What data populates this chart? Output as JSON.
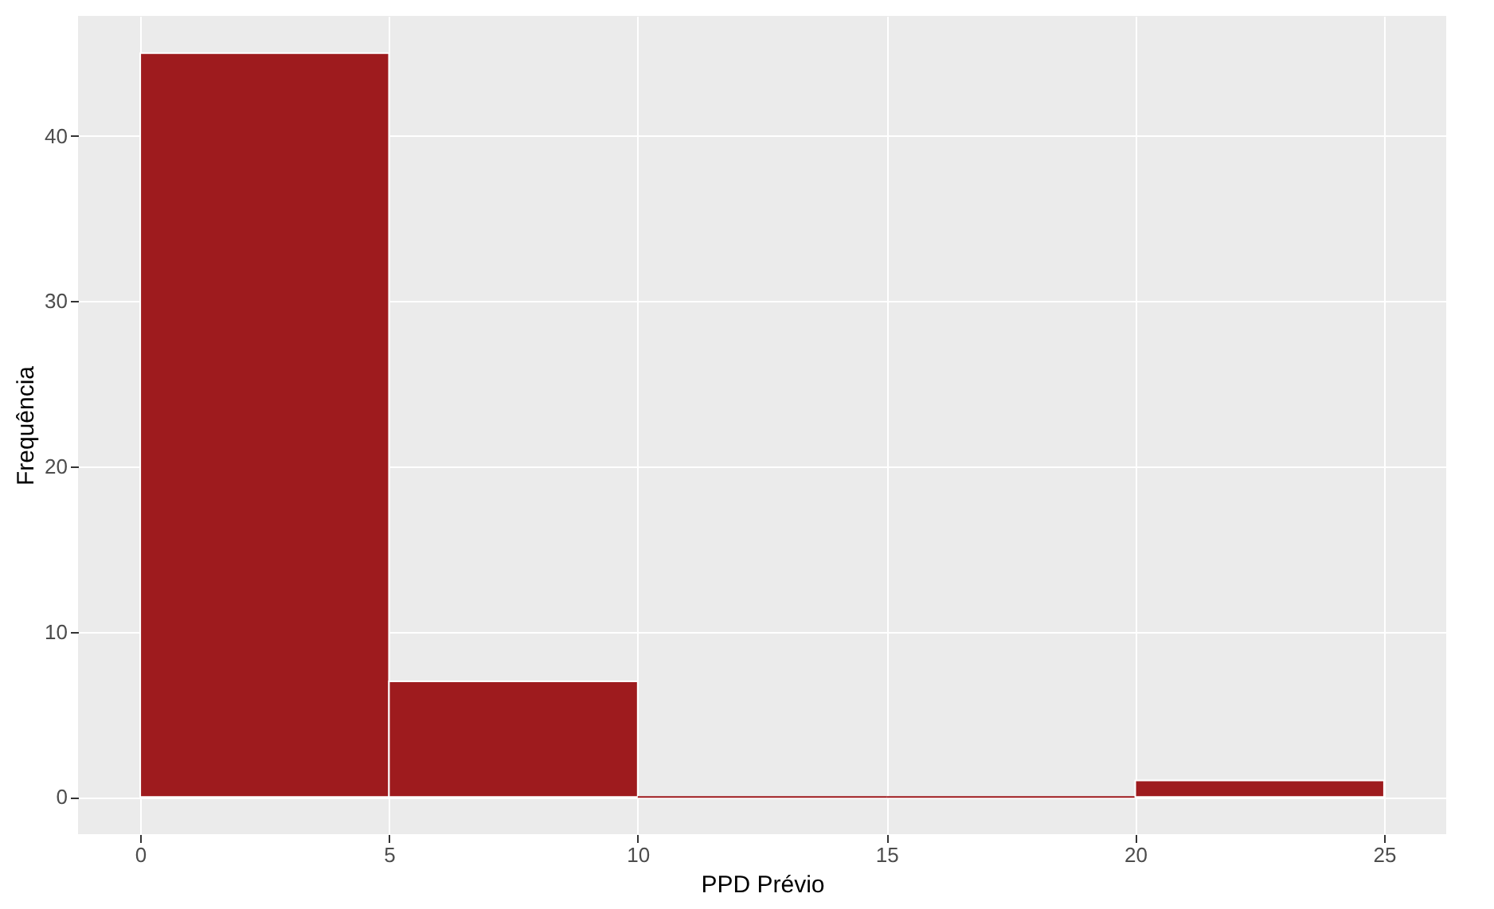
{
  "chart_data": {
    "type": "histogram",
    "xlabel": "PPD Prévio",
    "ylabel": "Frequência",
    "bins": [
      0,
      5,
      10,
      15,
      20,
      25
    ],
    "values": [
      45,
      7,
      0,
      0,
      1
    ],
    "color": "#9e1b1e",
    "xlim": [
      -1.25,
      26.25
    ],
    "xticks": [
      0,
      5,
      10,
      15,
      20,
      25
    ],
    "ylim": [
      -2.25,
      47.25
    ],
    "yticks": [
      0,
      10,
      20,
      30,
      40
    ],
    "grid": true
  }
}
